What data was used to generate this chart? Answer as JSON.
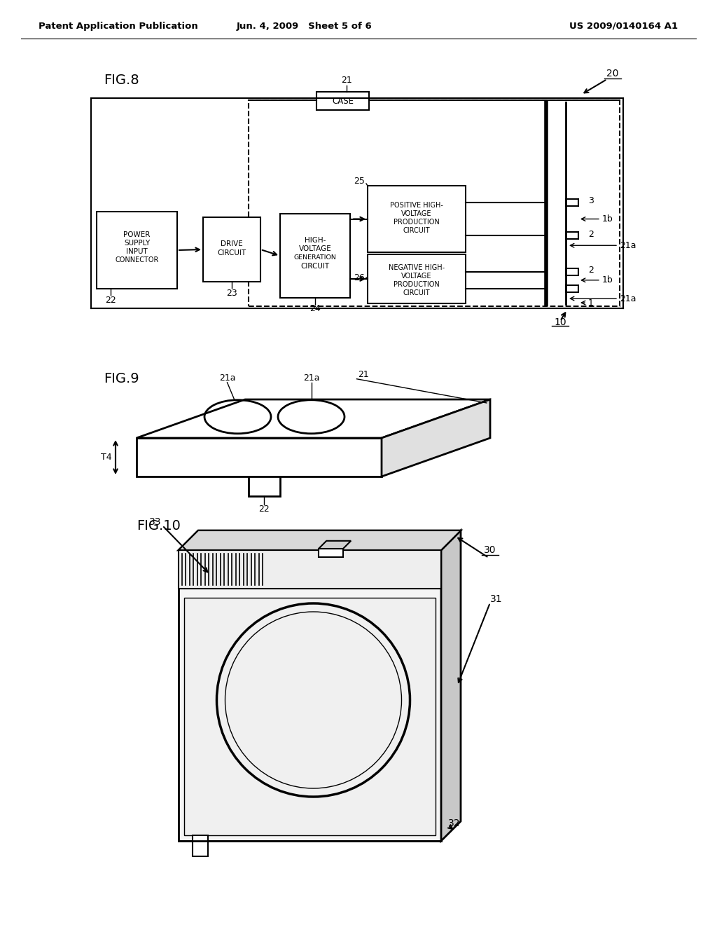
{
  "bg_color": "#ffffff",
  "line_color": "#000000",
  "header_left": "Patent Application Publication",
  "header_center": "Jun. 4, 2009   Sheet 5 of 6",
  "header_right": "US 2009/0140164 A1"
}
